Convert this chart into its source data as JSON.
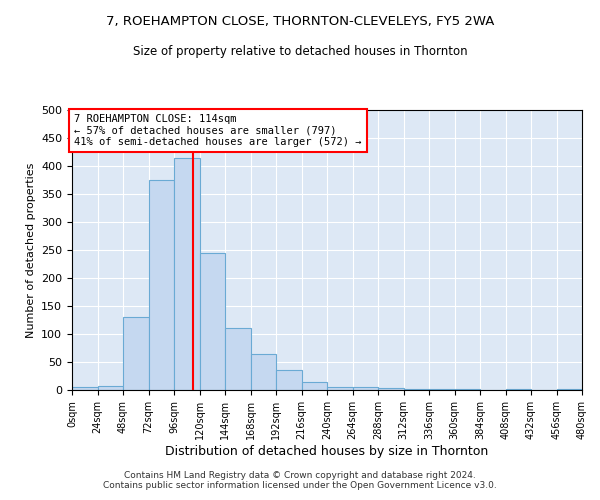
{
  "title": "7, ROEHAMPTON CLOSE, THORNTON-CLEVELEYS, FY5 2WA",
  "subtitle": "Size of property relative to detached houses in Thornton",
  "xlabel": "Distribution of detached houses by size in Thornton",
  "ylabel": "Number of detached properties",
  "bar_color": "#c5d8f0",
  "bar_edge_color": "#6aaad4",
  "bg_color": "#dde8f5",
  "grid_color": "#ffffff",
  "vline_x": 114,
  "vline_color": "red",
  "bin_width": 24,
  "bins_start": 0,
  "bins_end": 480,
  "bar_heights": [
    5,
    8,
    130,
    375,
    415,
    245,
    110,
    65,
    35,
    15,
    5,
    5,
    3,
    1,
    1,
    1,
    0,
    2,
    0,
    1
  ],
  "annotation_text": "7 ROEHAMPTON CLOSE: 114sqm\n← 57% of detached houses are smaller (797)\n41% of semi-detached houses are larger (572) →",
  "annotation_box_color": "white",
  "annotation_box_edge": "red",
  "footnote": "Contains HM Land Registry data © Crown copyright and database right 2024.\nContains public sector information licensed under the Open Government Licence v3.0.",
  "ylim": [
    0,
    500
  ],
  "xlim": [
    0,
    480
  ]
}
